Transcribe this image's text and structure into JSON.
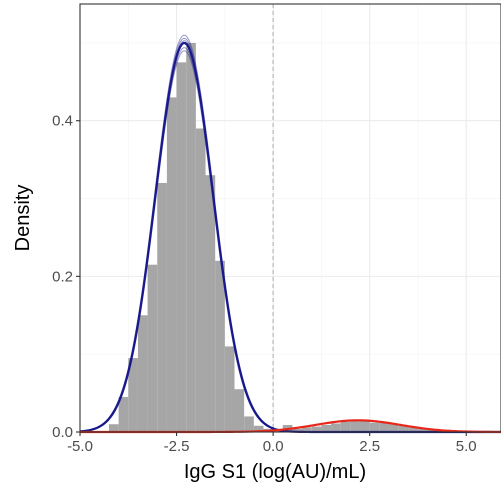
{
  "chart_data": {
    "type": "histogram-density",
    "xlabel": "IgG S1 (log(AU)/mL)",
    "ylabel": "Density",
    "xlim": [
      -5.0,
      5.9
    ],
    "ylim": [
      0,
      0.55
    ],
    "x_ticks": [
      {
        "value": -5.0,
        "label": "-5.0"
      },
      {
        "value": -2.5,
        "label": "-2.5"
      },
      {
        "value": 0.0,
        "label": "0.0"
      },
      {
        "value": 2.5,
        "label": "2.5"
      },
      {
        "value": 5.0,
        "label": "5.0"
      }
    ],
    "y_ticks": [
      {
        "value": 0.0,
        "label": "0.0"
      },
      {
        "value": 0.2,
        "label": "0.2"
      },
      {
        "value": 0.4,
        "label": "0.4"
      }
    ],
    "grid": true,
    "vline": {
      "x": 0.0,
      "style": "dashed",
      "color": "#b3b3b3"
    },
    "histogram": {
      "color": "#a6a6a6",
      "bins": [
        {
          "x0": -4.25,
          "x1": -4.0,
          "density": 0.01
        },
        {
          "x0": -4.0,
          "x1": -3.75,
          "density": 0.045
        },
        {
          "x0": -3.75,
          "x1": -3.5,
          "density": 0.095
        },
        {
          "x0": -3.5,
          "x1": -3.25,
          "density": 0.15
        },
        {
          "x0": -3.25,
          "x1": -3.0,
          "density": 0.215
        },
        {
          "x0": -3.0,
          "x1": -2.75,
          "density": 0.32
        },
        {
          "x0": -2.75,
          "x1": -2.5,
          "density": 0.43
        },
        {
          "x0": -2.5,
          "x1": -2.25,
          "density": 0.475
        },
        {
          "x0": -2.25,
          "x1": -2.0,
          "density": 0.5
        },
        {
          "x0": -2.0,
          "x1": -1.75,
          "density": 0.39
        },
        {
          "x0": -1.75,
          "x1": -1.5,
          "density": 0.33
        },
        {
          "x0": -1.5,
          "x1": -1.25,
          "density": 0.22
        },
        {
          "x0": -1.25,
          "x1": -1.0,
          "density": 0.11
        },
        {
          "x0": -1.0,
          "x1": -0.75,
          "density": 0.055
        },
        {
          "x0": -0.75,
          "x1": -0.5,
          "density": 0.02
        },
        {
          "x0": -0.5,
          "x1": -0.25,
          "density": 0.008
        },
        {
          "x0": -0.25,
          "x1": 0.0,
          "density": 0.004
        },
        {
          "x0": 0.0,
          "x1": 0.25,
          "density": 0.003
        },
        {
          "x0": 0.25,
          "x1": 0.5,
          "density": 0.009
        },
        {
          "x0": 0.5,
          "x1": 0.75,
          "density": 0.004
        },
        {
          "x0": 0.75,
          "x1": 1.0,
          "density": 0.006
        },
        {
          "x0": 1.0,
          "x1": 1.25,
          "density": 0.007
        },
        {
          "x0": 1.25,
          "x1": 1.5,
          "density": 0.009
        },
        {
          "x0": 1.5,
          "x1": 1.75,
          "density": 0.011
        },
        {
          "x0": 1.75,
          "x1": 2.0,
          "density": 0.013
        },
        {
          "x0": 2.0,
          "x1": 2.25,
          "density": 0.015
        },
        {
          "x0": 2.25,
          "x1": 2.5,
          "density": 0.014
        },
        {
          "x0": 2.5,
          "x1": 2.75,
          "density": 0.012
        },
        {
          "x0": 2.75,
          "x1": 3.0,
          "density": 0.012
        },
        {
          "x0": 3.0,
          "x1": 3.25,
          "density": 0.01
        },
        {
          "x0": 3.25,
          "x1": 3.5,
          "density": 0.008
        },
        {
          "x0": 3.5,
          "x1": 3.75,
          "density": 0.006
        },
        {
          "x0": 3.75,
          "x1": 4.0,
          "density": 0.004
        },
        {
          "x0": 4.0,
          "x1": 4.25,
          "density": 0.003
        },
        {
          "x0": 4.25,
          "x1": 4.5,
          "density": 0.002
        }
      ]
    },
    "series": [
      {
        "color": "#1a1a8c",
        "peak_x": -2.3,
        "peak_density": 0.5,
        "sd": 0.75
      },
      {
        "color": "#e8291c",
        "peak_x": 2.2,
        "peak_density": 0.015,
        "sd": 1.1
      }
    ]
  }
}
